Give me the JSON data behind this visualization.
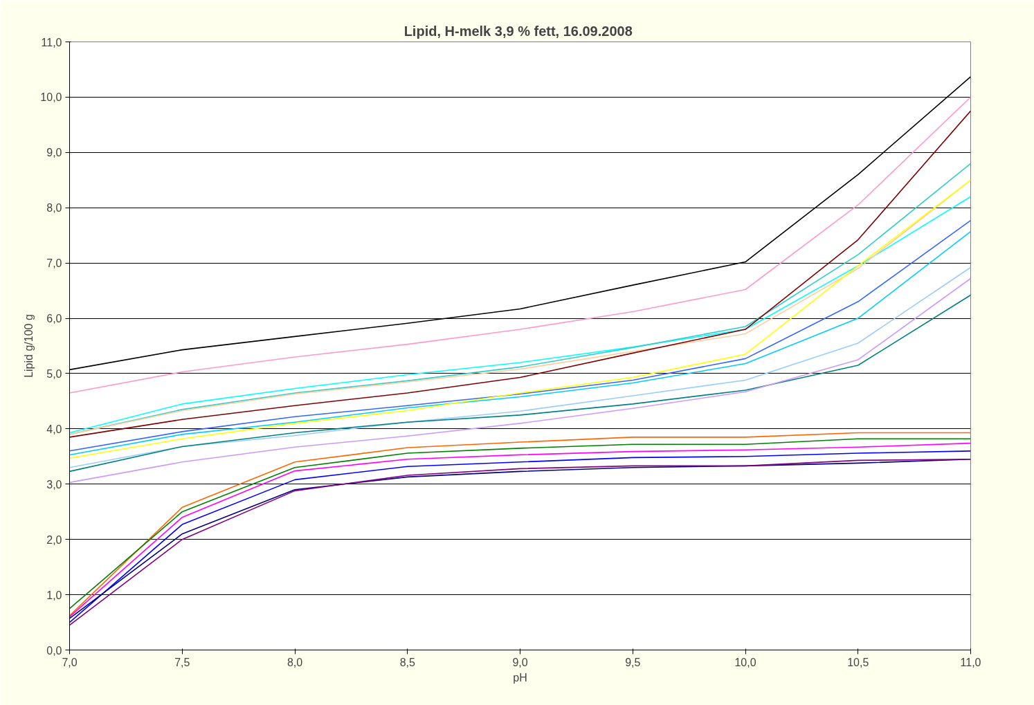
{
  "chart_data": {
    "type": "line",
    "title": "Lipid, H-melk 3,9 %  fett, 16.09.2008",
    "xlabel": "pH",
    "ylabel": "Lipid g/100 g",
    "x": [
      7.0,
      7.5,
      8.0,
      8.5,
      9.0,
      9.5,
      10.0,
      10.5,
      11.0
    ],
    "xlim": [
      7.0,
      11.0
    ],
    "ylim": [
      0,
      11
    ],
    "xticks": [
      {
        "value": 7.0,
        "label": "7,0"
      },
      {
        "value": 7.5,
        "label": "7,5"
      },
      {
        "value": 8.0,
        "label": "8,0"
      },
      {
        "value": 8.5,
        "label": "8,5"
      },
      {
        "value": 9.0,
        "label": "9,0"
      },
      {
        "value": 9.5,
        "label": "9,5"
      },
      {
        "value": 10.0,
        "label": "10,0"
      },
      {
        "value": 10.5,
        "label": "10,5"
      },
      {
        "value": 11.0,
        "label": "11,0"
      }
    ],
    "yticks": [
      {
        "value": 0,
        "label": "0,0"
      },
      {
        "value": 1,
        "label": "1,0"
      },
      {
        "value": 2,
        "label": "2,0"
      },
      {
        "value": 3,
        "label": "3,0"
      },
      {
        "value": 4,
        "label": "4,0"
      },
      {
        "value": 5,
        "label": "5,0"
      },
      {
        "value": 6,
        "label": "6,0"
      },
      {
        "value": 7,
        "label": "7,0"
      },
      {
        "value": 8,
        "label": "8,0"
      },
      {
        "value": 9,
        "label": "9,0"
      },
      {
        "value": 10,
        "label": "10,0"
      },
      {
        "value": 11,
        "label": "11,0"
      }
    ],
    "grid": "y",
    "marker": "none",
    "line_style": "solid",
    "series": [
      {
        "color": "#000000",
        "values": [
          5.07,
          5.43,
          5.67,
          5.91,
          6.17,
          6.6,
          7.02,
          8.6,
          10.37
        ]
      },
      {
        "color": "#ff99cc",
        "values": [
          4.65,
          5.03,
          5.3,
          5.53,
          5.8,
          6.12,
          6.52,
          8.05,
          10.0
        ]
      },
      {
        "color": "#00ffff",
        "values": [
          3.93,
          4.45,
          4.73,
          4.98,
          5.2,
          5.48,
          5.8,
          6.95,
          8.2
        ]
      },
      {
        "color": "#33cccc",
        "values": [
          3.9,
          4.35,
          4.65,
          4.87,
          5.12,
          5.47,
          5.85,
          7.15,
          8.8
        ]
      },
      {
        "color": "#ffcc99",
        "values": [
          3.9,
          4.33,
          4.63,
          4.85,
          5.08,
          5.4,
          5.72,
          6.9,
          8.5
        ]
      },
      {
        "color": "#800000",
        "values": [
          3.85,
          4.17,
          4.42,
          4.65,
          4.93,
          5.37,
          5.8,
          7.42,
          9.75
        ]
      },
      {
        "color": "#3366ff",
        "values": [
          3.6,
          3.95,
          4.22,
          4.42,
          4.63,
          4.88,
          5.27,
          6.3,
          7.77
        ]
      },
      {
        "color": "#00ccff",
        "values": [
          3.53,
          3.9,
          4.12,
          4.38,
          4.58,
          4.83,
          5.18,
          6.0,
          7.57
        ]
      },
      {
        "color": "#ffff00",
        "values": [
          3.47,
          3.82,
          4.1,
          4.33,
          4.65,
          4.93,
          5.35,
          6.95,
          8.5
        ]
      },
      {
        "color": "#99ccff",
        "values": [
          3.3,
          3.68,
          3.88,
          4.12,
          4.32,
          4.6,
          4.88,
          5.55,
          6.92
        ]
      },
      {
        "color": "#008080",
        "values": [
          3.23,
          3.68,
          3.93,
          4.12,
          4.25,
          4.45,
          4.7,
          5.15,
          6.42
        ]
      },
      {
        "color": "#cc99ff",
        "values": [
          3.03,
          3.4,
          3.67,
          3.87,
          4.1,
          4.37,
          4.67,
          5.25,
          6.72
        ]
      },
      {
        "color": "#ff6600",
        "values": [
          0.62,
          2.58,
          3.4,
          3.66,
          3.76,
          3.85,
          3.85,
          3.93,
          3.93
        ]
      },
      {
        "color": "#008000",
        "values": [
          0.75,
          2.5,
          3.3,
          3.56,
          3.65,
          3.72,
          3.72,
          3.82,
          3.82
        ]
      },
      {
        "color": "#ff00ff",
        "values": [
          0.6,
          2.4,
          3.24,
          3.45,
          3.53,
          3.59,
          3.62,
          3.67,
          3.74
        ]
      },
      {
        "color": "#0000ff",
        "values": [
          0.5,
          2.27,
          3.08,
          3.32,
          3.4,
          3.48,
          3.5,
          3.56,
          3.6
        ]
      },
      {
        "color": "#000080",
        "values": [
          0.57,
          2.1,
          2.9,
          3.13,
          3.23,
          3.3,
          3.33,
          3.38,
          3.45
        ]
      },
      {
        "color": "#800080",
        "values": [
          0.45,
          2.0,
          2.88,
          3.16,
          3.28,
          3.33,
          3.33,
          3.43,
          3.45
        ]
      }
    ]
  }
}
